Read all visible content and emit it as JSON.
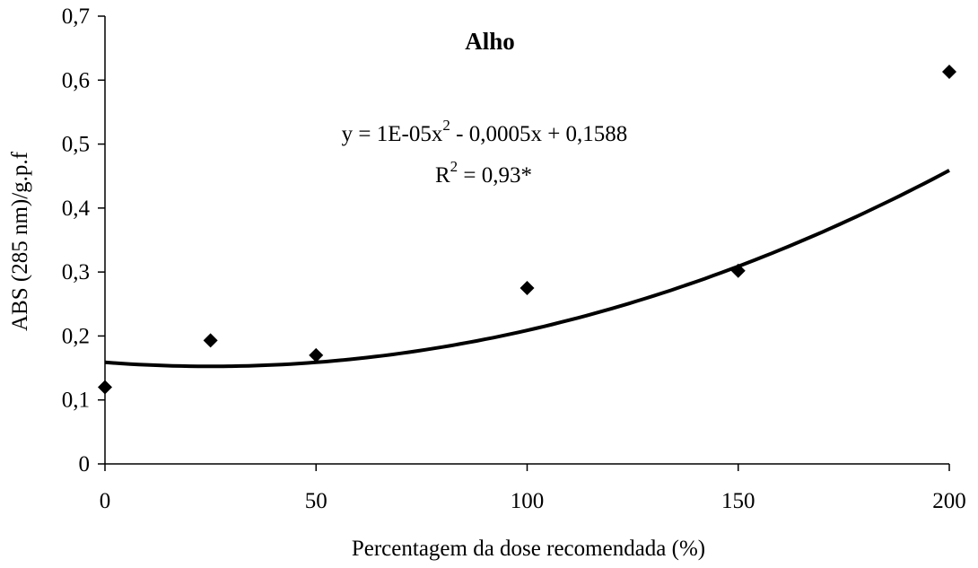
{
  "chart_data": {
    "type": "scatter",
    "title": "Alho",
    "xlabel": "Percentagem da dose recomendada (%)",
    "ylabel": "ABS (285 nm)/g.p.f",
    "xlim": [
      0,
      200
    ],
    "ylim": [
      0,
      0.7
    ],
    "x_ticks": [
      0,
      50,
      100,
      150,
      200
    ],
    "x_tick_labels": [
      "0",
      "50",
      "100",
      "150",
      "200"
    ],
    "y_ticks": [
      0,
      0.1,
      0.2,
      0.3,
      0.4,
      0.5,
      0.6,
      0.7
    ],
    "y_tick_labels": [
      "0",
      "0,1",
      "0,2",
      "0,3",
      "0,4",
      "0,5",
      "0,6",
      "0,7"
    ],
    "grid": false,
    "series": [
      {
        "marker": "diamond",
        "color": "#000000",
        "points": [
          {
            "x": 0,
            "y": 0.12
          },
          {
            "x": 25,
            "y": 0.193
          },
          {
            "x": 50,
            "y": 0.17
          },
          {
            "x": 100,
            "y": 0.275
          },
          {
            "x": 150,
            "y": 0.302
          },
          {
            "x": 200,
            "y": 0.613
          }
        ]
      }
    ],
    "trendline": {
      "type": "polynomial",
      "degree": 2,
      "coefficients": {
        "a": 1e-05,
        "b": -0.0005,
        "c": 0.1588
      },
      "color": "#000000"
    },
    "annotations": {
      "equation_prefix": "y = 1E-05x",
      "equation_exp": "2",
      "equation_suffix": " - 0,0005x + 0,1588",
      "r2_prefix": "R",
      "r2_exp": "2",
      "r2_suffix": " = 0,93*"
    }
  }
}
